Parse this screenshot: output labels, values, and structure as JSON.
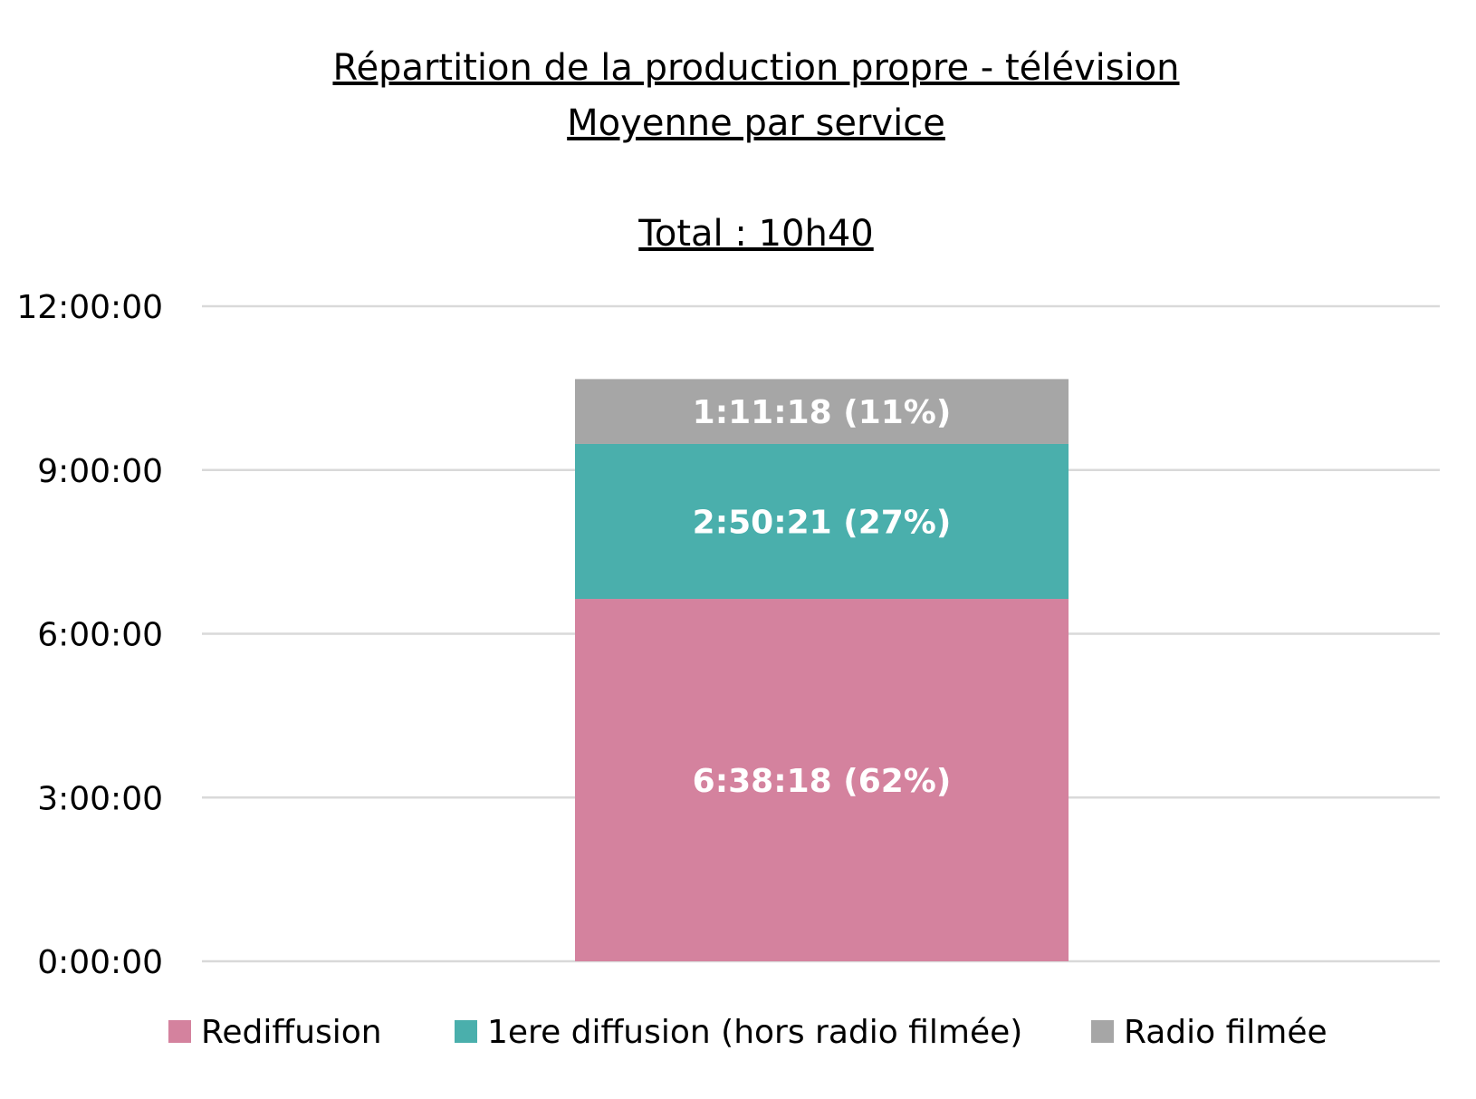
{
  "chart_data": {
    "type": "bar",
    "stacked": true,
    "title_lines": [
      "Répartition de la production propre - télévision",
      "Moyenne par service"
    ],
    "subtitle": "Total : 10h40",
    "xlabel": "",
    "ylabel": "",
    "categories": [
      ""
    ],
    "y_unit": "hours",
    "ylim": [
      0,
      12
    ],
    "yticks": [
      0,
      3,
      6,
      9,
      12
    ],
    "ytick_labels": [
      "0:00:00",
      "3:00:00",
      "6:00:00",
      "9:00:00",
      "12:00:00"
    ],
    "grid": true,
    "legend_position": "bottom",
    "series": [
      {
        "name": "Rediffusion",
        "values": [
          6.6383
        ],
        "label": "6:38:18 (62%)",
        "color": "#d4829e"
      },
      {
        "name": "1ere diffusion (hors radio filmée)",
        "values": [
          2.8392
        ],
        "label": "2:50:21 (27%)",
        "color": "#4aafac"
      },
      {
        "name": "Radio filmée",
        "values": [
          1.1883
        ],
        "label": "1:11:18 (11%)",
        "color": "#a6a6a6"
      }
    ]
  }
}
